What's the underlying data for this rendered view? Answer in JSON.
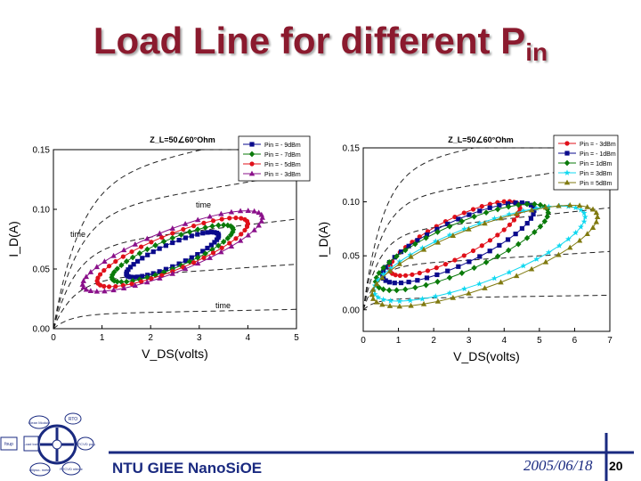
{
  "slide": {
    "title_main": "Load Line for different P",
    "title_sub": "in",
    "footer_org": "NTU GIEE NanoSiOE",
    "footer_date": "2005/06/18",
    "page_number": "20"
  },
  "logo": {
    "labels": [
      "Clean Module",
      "RTO",
      "RTCVD poly",
      "RTCVD nitride",
      "ellipso- meter",
      "Load lock",
      "foup"
    ]
  },
  "colors": {
    "title": "#8b1a2e",
    "footer_text": "#1a2a80",
    "footer_rule": "#1a2a80",
    "blue": "#0a0a8c",
    "green": "#0a7a0a",
    "red": "#e0101a",
    "purple": "#8a108a",
    "cyan": "#10d8f0",
    "olive": "#807a10"
  },
  "chart_data": [
    {
      "type": "line",
      "title": "Z_L=50∠60°Ohm",
      "xlabel": "V_DS(volts)",
      "ylabel": "I_D(A)",
      "xlim": [
        0,
        5
      ],
      "ylim": [
        0,
        0.15
      ],
      "xticks": [
        "0",
        "1",
        "2",
        "3",
        "4",
        "5"
      ],
      "yticks": [
        "0.00",
        "0.05",
        "0.10",
        "0.15"
      ],
      "legend_position": "top-right",
      "annotations": [
        "time",
        "time",
        "time"
      ],
      "series": [
        {
          "name": "Pin = - 9dBm",
          "color": "#0a0a8c",
          "marker": "square",
          "cx": 2.45,
          "cy": 0.062,
          "a": 0.95,
          "b": 0.01,
          "skew": 0.016
        },
        {
          "name": "Pin = - 7dBm",
          "color": "#0a7a0a",
          "marker": "diamond",
          "cx": 2.45,
          "cy": 0.063,
          "a": 1.25,
          "b": 0.013,
          "skew": 0.02
        },
        {
          "name": "Pin = - 5dBm",
          "color": "#e0101a",
          "marker": "circle",
          "cx": 2.45,
          "cy": 0.064,
          "a": 1.55,
          "b": 0.016,
          "skew": 0.024
        },
        {
          "name": "Pin = - 3dBm",
          "color": "#8a108a",
          "marker": "triangle",
          "cx": 2.45,
          "cy": 0.065,
          "a": 1.85,
          "b": 0.019,
          "skew": 0.028
        }
      ]
    },
    {
      "type": "line",
      "title": "Z_L=50∠60°Ohm",
      "xlabel": "V_DS(volts)",
      "ylabel": "I_D(A)",
      "xlim": [
        0,
        7
      ],
      "ylim": [
        -0.02,
        0.15
      ],
      "xticks": [
        "0",
        "1",
        "2",
        "3",
        "4",
        "5",
        "6",
        "7"
      ],
      "yticks": [
        "0.00",
        "0.05",
        "0.10",
        "0.15"
      ],
      "legend_position": "top-right",
      "series": [
        {
          "name": "Pin = - 3dBm",
          "color": "#e0101a",
          "marker": "circle",
          "cx": 2.6,
          "cy": 0.066,
          "a": 1.85,
          "b": 0.02,
          "skew": 0.028
        },
        {
          "name": "Pin = - 1dBm",
          "color": "#0a0a8c",
          "marker": "square",
          "cx": 2.7,
          "cy": 0.062,
          "a": 2.15,
          "b": 0.022,
          "skew": 0.03
        },
        {
          "name": "Pin = 1dBm",
          "color": "#0a7a0a",
          "marker": "diamond",
          "cx": 2.8,
          "cy": 0.058,
          "a": 2.45,
          "b": 0.024,
          "skew": 0.032
        },
        {
          "name": "Pin = 3dBm",
          "color": "#10d8f0",
          "marker": "star",
          "cx": 3.3,
          "cy": 0.052,
          "a": 3.0,
          "b": 0.028,
          "skew": 0.034
        },
        {
          "name": "Pin = 5dBm",
          "color": "#807a10",
          "marker": "triangle",
          "cx": 3.45,
          "cy": 0.05,
          "a": 3.2,
          "b": 0.03,
          "skew": 0.036
        }
      ]
    }
  ]
}
